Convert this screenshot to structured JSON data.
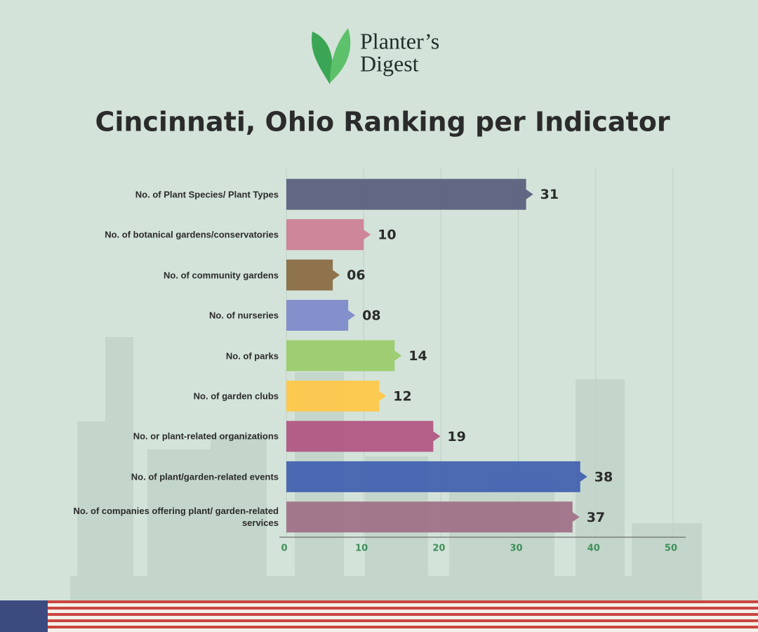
{
  "brand": {
    "line1": "Planter’s",
    "line2": "Digest"
  },
  "chart_data": {
    "type": "bar",
    "orientation": "horizontal",
    "title": "Cincinnati, Ohio Ranking per Indicator",
    "categories": [
      "No. of Plant Species/ Plant Types",
      "No. of botanical gardens/conservatories",
      "No. of community gardens",
      "No. of nurseries",
      "No. of parks",
      "No. of garden clubs",
      "No. or plant-related organizations",
      "No. of plant/garden-related events",
      "No. of companies offering plant/ garden-related services"
    ],
    "values": [
      31,
      10,
      6,
      8,
      14,
      12,
      19,
      38,
      37
    ],
    "value_labels": [
      "31",
      "10",
      "06",
      "08",
      "14",
      "12",
      "19",
      "38",
      "37"
    ],
    "colors": [
      "#5c607f",
      "#cd8198",
      "#8b6d44",
      "#7f8bcb",
      "#9bcc6c",
      "#fec84a",
      "#b15783",
      "#4463b0",
      "#a07288"
    ],
    "xlim": [
      0,
      52
    ],
    "xticks": [
      0,
      10,
      20,
      30,
      40,
      50
    ],
    "grid": true
  }
}
